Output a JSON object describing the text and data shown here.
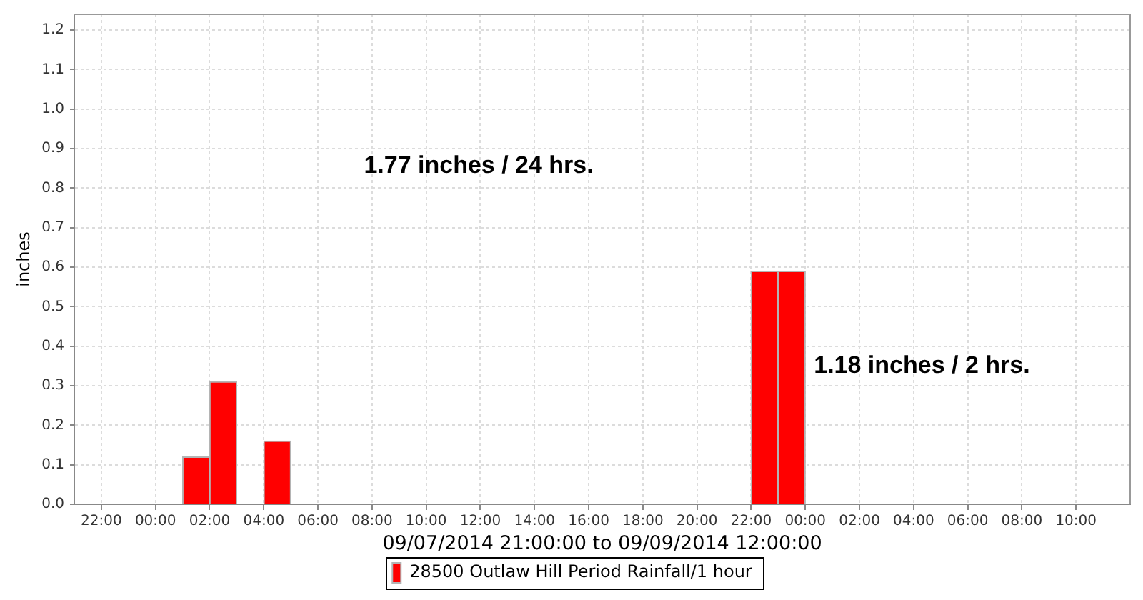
{
  "chart_data": {
    "type": "bar",
    "xlabel": "09/07/2014 21:00:00 to 09/09/2014 12:00:00",
    "ylabel": "inches",
    "x": [
      "2014-09-08T01:30",
      "2014-09-08T02:30",
      "2014-09-08T04:30",
      "2014-09-08T22:30",
      "2014-09-08T23:30"
    ],
    "series": [
      {
        "name": "28500 Outlaw Hill Period Rainfall/1 hour",
        "color": "#ff0000",
        "values": [
          0.12,
          0.31,
          0.16,
          0.59,
          0.59
        ]
      }
    ],
    "xlim": [
      "2014-09-07T21:00",
      "2014-09-09T12:00"
    ],
    "xticks": [
      {
        "value": "2014-09-07T22:00",
        "label": "22:00"
      },
      {
        "value": "2014-09-08T00:00",
        "label": "00:00"
      },
      {
        "value": "2014-09-08T02:00",
        "label": "02:00"
      },
      {
        "value": "2014-09-08T04:00",
        "label": "04:00"
      },
      {
        "value": "2014-09-08T06:00",
        "label": "06:00"
      },
      {
        "value": "2014-09-08T08:00",
        "label": "08:00"
      },
      {
        "value": "2014-09-08T10:00",
        "label": "10:00"
      },
      {
        "value": "2014-09-08T12:00",
        "label": "12:00"
      },
      {
        "value": "2014-09-08T14:00",
        "label": "14:00"
      },
      {
        "value": "2014-09-08T16:00",
        "label": "16:00"
      },
      {
        "value": "2014-09-08T18:00",
        "label": "18:00"
      },
      {
        "value": "2014-09-08T20:00",
        "label": "20:00"
      },
      {
        "value": "2014-09-08T22:00",
        "label": "22:00"
      },
      {
        "value": "2014-09-09T00:00",
        "label": "00:00"
      },
      {
        "value": "2014-09-09T02:00",
        "label": "02:00"
      },
      {
        "value": "2014-09-09T04:00",
        "label": "04:00"
      },
      {
        "value": "2014-09-09T06:00",
        "label": "06:00"
      },
      {
        "value": "2014-09-09T08:00",
        "label": "08:00"
      },
      {
        "value": "2014-09-09T10:00",
        "label": "10:00"
      }
    ],
    "ylim": [
      0,
      1.24
    ],
    "yticks": [
      {
        "value": 0,
        "label": "0.0"
      },
      0.1,
      0.2,
      0.3,
      0.4,
      0.5,
      0.6,
      0.7,
      0.8,
      0.9,
      {
        "value": 1,
        "label": "1.0"
      },
      1.1,
      1.2
    ],
    "grid": true,
    "legend": "bottom",
    "annotations": [
      "1.77 inches / 24 hrs.",
      {
        "text": "1.18 inches / 2 hrs.",
        "x": "2014-09-09T00:00",
        "y": 0.35
      }
    ]
  }
}
